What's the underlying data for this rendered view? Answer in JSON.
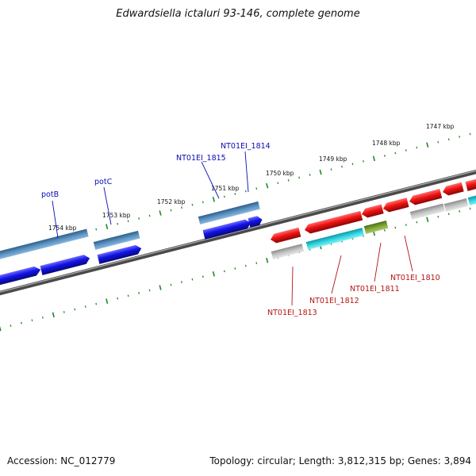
{
  "title": "Edwardsiella ictaluri 93-146, complete genome",
  "footer": {
    "accession": "Accession: NC_012779",
    "stats": "Topology: circular; Length: 3,812,315 bp; Genes: 3,894"
  },
  "ruler_labels": [
    "1747 kbp",
    "1748 kbp",
    "1749 kbp",
    "1750 kbp",
    "1751 kbp",
    "1752 kbp",
    "1753 kbp",
    "1754 kbp"
  ],
  "gene_labels": [
    "potB",
    "potC",
    "NT01EI_1815",
    "NT01EI_1814",
    "NT01EI_1813",
    "NT01EI_1812",
    "NT01EI_1811",
    "NT01EI_1810"
  ],
  "colors": {
    "backbone": "#7a7a7a",
    "ruler_ticks": "#1f8a1f",
    "forward_cds": "#1010e0",
    "forward_gene": "#4a82b4",
    "reverse_cds": "#e01010",
    "reverse_gene": "#b8b8b8",
    "cyan_feature": "#1ec8d2",
    "olive_feature": "#6f9a2a",
    "label_forward": "#0b0bb5",
    "label_reverse": "#b51414"
  }
}
